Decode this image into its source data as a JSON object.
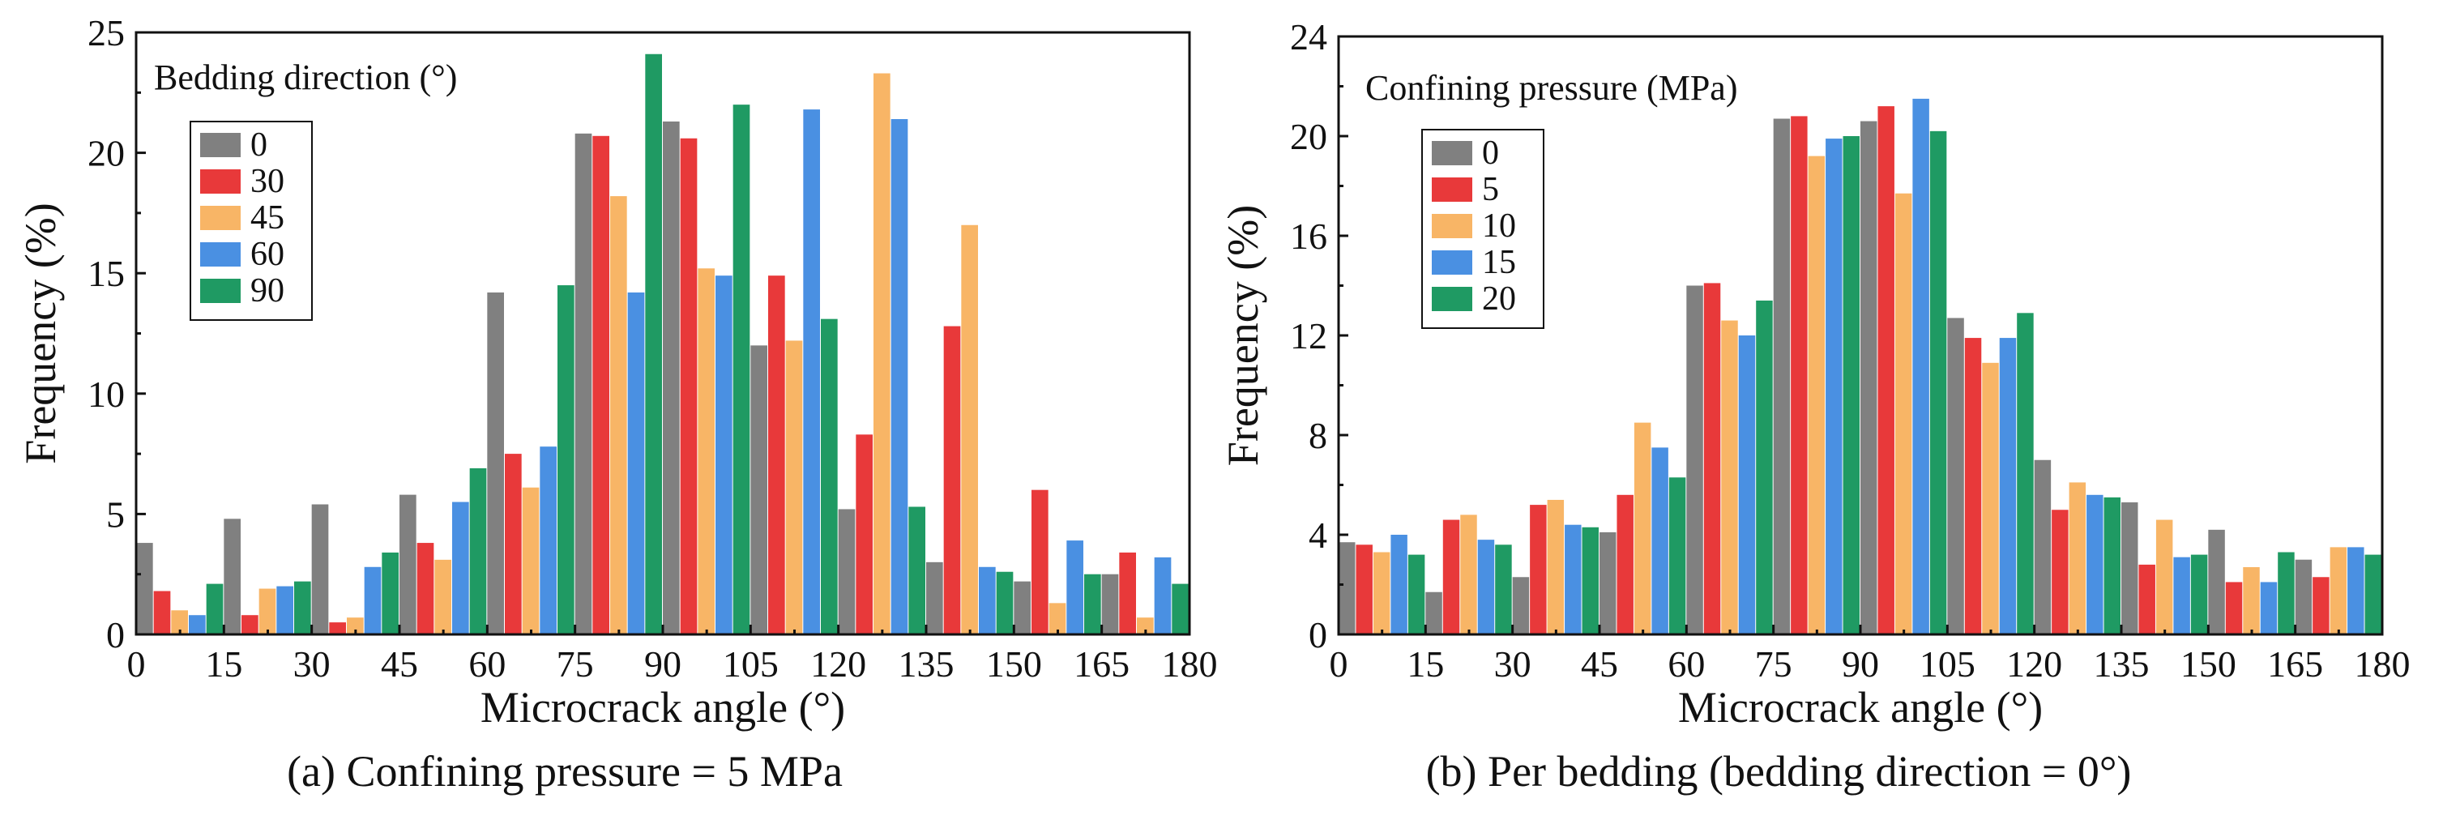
{
  "figure": {
    "captions": [
      "(a) Confining pressure = 5 MPa",
      "(b) Per bedding (bedding direction = 0°)"
    ]
  },
  "chart_data": [
    {
      "type": "bar",
      "title": "",
      "caption": "(a) Confining pressure = 5 MPa",
      "xlabel": "Microcrack angle (°)",
      "ylabel": "Frequency (%)",
      "legend_title": "Bedding direction (°)",
      "legend_position": "top-left",
      "xlim": [
        0,
        180
      ],
      "ylim": [
        0,
        25
      ],
      "xticks": [
        0,
        15,
        30,
        45,
        60,
        75,
        90,
        105,
        120,
        135,
        150,
        165,
        180
      ],
      "xtick_labels": [
        "0",
        "15",
        "30",
        "45",
        "60",
        "75",
        "90",
        "105",
        "120",
        "135",
        "150",
        "165",
        "180"
      ],
      "yticks": [
        0,
        5,
        10,
        15,
        20,
        25
      ],
      "ytick_labels": [
        "0",
        "5",
        "10",
        "15",
        "20",
        "25"
      ],
      "bin_starts": [
        0,
        15,
        30,
        45,
        60,
        75,
        90,
        105,
        120,
        135,
        150,
        165
      ],
      "bin_width": 15,
      "grid": false,
      "series": [
        {
          "name": "0",
          "color": "#808080",
          "values": [
            3.8,
            4.8,
            5.4,
            5.8,
            14.2,
            20.8,
            21.3,
            12.0,
            5.2,
            3.0,
            2.2,
            2.5
          ]
        },
        {
          "name": "30",
          "color": "#e8393a",
          "values": [
            1.8,
            0.8,
            0.5,
            3.8,
            7.5,
            20.7,
            20.6,
            14.9,
            8.3,
            12.8,
            6.0,
            3.4
          ]
        },
        {
          "name": "45",
          "color": "#f8b566",
          "values": [
            1.0,
            1.9,
            0.7,
            3.1,
            6.1,
            18.2,
            15.2,
            12.2,
            23.3,
            17.0,
            1.3,
            0.7
          ]
        },
        {
          "name": "60",
          "color": "#4a90e2",
          "values": [
            0.8,
            2.0,
            2.8,
            5.5,
            7.8,
            14.2,
            14.9,
            21.8,
            21.4,
            2.8,
            3.9,
            3.2
          ]
        },
        {
          "name": "90",
          "color": "#1f9a63",
          "values": [
            2.1,
            2.2,
            3.4,
            6.9,
            14.5,
            24.1,
            22.0,
            13.1,
            5.3,
            2.6,
            2.5,
            2.1
          ]
        }
      ]
    },
    {
      "type": "bar",
      "title": "",
      "caption": "(b) Per bedding (bedding direction = 0°)",
      "xlabel": "Microcrack angle (°)",
      "ylabel": "Frequency (%)",
      "legend_title": "Confining pressure (MPa)",
      "legend_position": "top-left",
      "xlim": [
        0,
        180
      ],
      "ylim": [
        0,
        24
      ],
      "xticks": [
        0,
        15,
        30,
        45,
        60,
        75,
        90,
        105,
        120,
        135,
        150,
        165,
        180
      ],
      "xtick_labels": [
        "0",
        "15",
        "30",
        "45",
        "60",
        "75",
        "90",
        "105",
        "120",
        "135",
        "150",
        "165",
        "180"
      ],
      "yticks": [
        0,
        4,
        8,
        12,
        16,
        20,
        24
      ],
      "ytick_labels": [
        "0",
        "4",
        "8",
        "12",
        "16",
        "20",
        "24"
      ],
      "bin_starts": [
        0,
        15,
        30,
        45,
        60,
        75,
        90,
        105,
        120,
        135,
        150,
        165
      ],
      "bin_width": 15,
      "grid": false,
      "series": [
        {
          "name": "0",
          "color": "#808080",
          "values": [
            3.7,
            1.7,
            2.3,
            4.1,
            14.0,
            20.7,
            20.6,
            12.7,
            7.0,
            5.3,
            4.2,
            3.0
          ]
        },
        {
          "name": "5",
          "color": "#e8393a",
          "values": [
            3.6,
            4.6,
            5.2,
            5.6,
            14.1,
            20.8,
            21.2,
            11.9,
            5.0,
            2.8,
            2.1,
            2.3
          ]
        },
        {
          "name": "10",
          "color": "#f8b566",
          "values": [
            3.3,
            4.8,
            5.4,
            8.5,
            12.6,
            19.2,
            17.7,
            10.9,
            6.1,
            4.6,
            2.7,
            3.5
          ]
        },
        {
          "name": "15",
          "color": "#4a90e2",
          "values": [
            4.0,
            3.8,
            4.4,
            7.5,
            12.0,
            19.9,
            21.5,
            11.9,
            5.6,
            3.1,
            2.1,
            3.5
          ]
        },
        {
          "name": "20",
          "color": "#1f9a63",
          "values": [
            3.2,
            3.6,
            4.3,
            6.3,
            13.4,
            20.0,
            20.2,
            12.9,
            5.5,
            3.2,
            3.3,
            3.2
          ]
        }
      ]
    }
  ]
}
